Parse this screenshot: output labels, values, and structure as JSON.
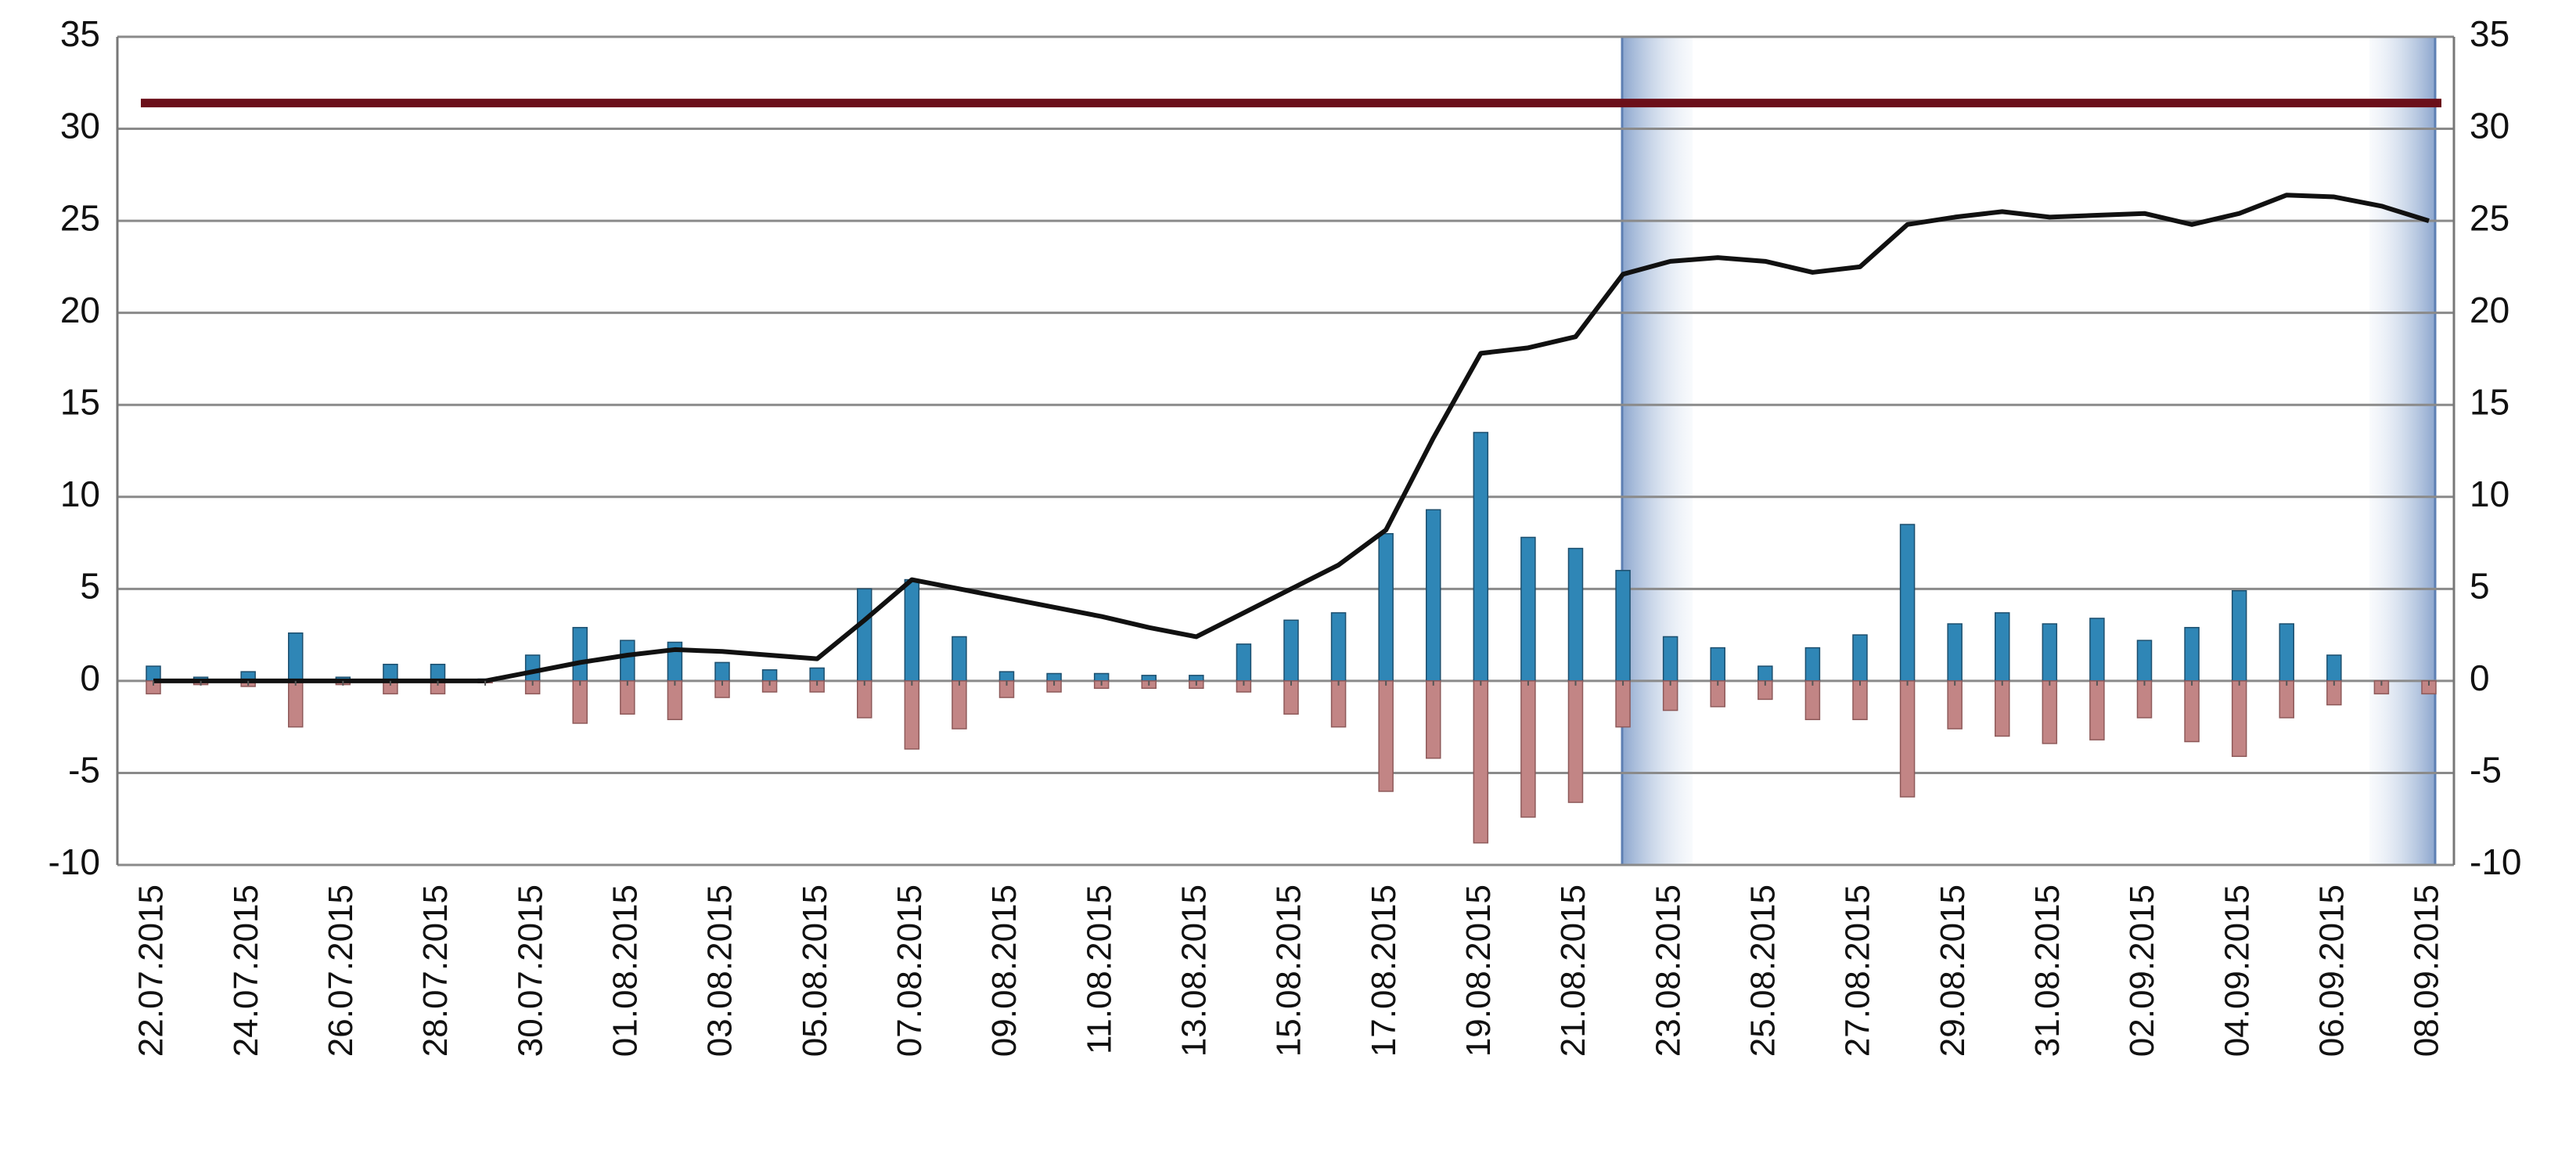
{
  "chart_data": {
    "type": "bar-line",
    "categories": [
      "22.07.2015",
      null,
      "24.07.2015",
      null,
      "26.07.2015",
      null,
      "28.07.2015",
      null,
      "30.07.2015",
      null,
      "01.08.2015",
      null,
      "03.08.2015",
      null,
      "05.08.2015",
      null,
      "07.08.2015",
      null,
      "09.08.2015",
      null,
      "11.08.2015",
      null,
      "13.08.2015",
      null,
      "15.08.2015",
      null,
      "17.08.2015",
      null,
      "19.08.2015",
      null,
      "21.08.2015",
      null,
      "23.08.2015",
      null,
      "25.08.2015",
      null,
      "27.08.2015",
      null,
      "29.08.2015",
      null,
      "31.08.2015",
      null,
      "02.09.2015",
      null,
      "04.09.2015",
      null,
      "06.09.2015",
      null,
      "08.09.2015"
    ],
    "series": [
      {
        "kind": "bar",
        "color": "#2f86b6",
        "values": [
          0.8,
          0.2,
          0.5,
          2.6,
          0.2,
          0.9,
          0.9,
          0.1,
          1.4,
          2.9,
          2.2,
          2.1,
          1.0,
          0.6,
          0.7,
          5.0,
          5.5,
          2.4,
          0.5,
          0.4,
          0.4,
          0.3,
          0.3,
          2.0,
          3.3,
          3.7,
          8.0,
          9.3,
          13.5,
          7.8,
          7.2,
          6.0,
          2.4,
          1.8,
          0.8,
          1.8,
          2.5,
          8.5,
          3.1,
          3.7,
          3.1,
          3.4,
          2.2,
          2.9,
          4.9,
          3.1,
          1.4,
          0,
          0
        ]
      },
      {
        "kind": "bar",
        "color": "#c28585",
        "values": [
          -0.7,
          -0.2,
          -0.3,
          -2.5,
          -0.2,
          -0.7,
          -0.7,
          -0.1,
          -0.7,
          -2.3,
          -1.8,
          -2.1,
          -0.9,
          -0.6,
          -0.6,
          -2.0,
          -3.7,
          -2.6,
          -0.9,
          -0.6,
          -0.4,
          -0.4,
          -0.4,
          -0.6,
          -1.8,
          -2.5,
          -6.0,
          -4.2,
          -8.8,
          -7.4,
          -6.6,
          -2.5,
          -1.6,
          -1.4,
          -1.0,
          -2.1,
          -2.1,
          -6.3,
          -2.6,
          -3.0,
          -3.4,
          -3.2,
          -2.0,
          -3.3,
          -4.1,
          -2.0,
          -1.3,
          -0.7,
          -0.7
        ]
      },
      {
        "kind": "line",
        "color": "#111111",
        "values": [
          0,
          0,
          0,
          0,
          0,
          0,
          0,
          0,
          0.5,
          1.0,
          1.4,
          1.7,
          1.6,
          1.4,
          1.2,
          3.3,
          5.5,
          5.0,
          4.5,
          4.0,
          3.5,
          2.9,
          2.4,
          3.7,
          5.0,
          6.3,
          8.2,
          13.2,
          17.8,
          18.1,
          18.7,
          22.1,
          22.8,
          23.0,
          22.8,
          22.2,
          22.5,
          24.8,
          25.2,
          25.5,
          25.2,
          25.3,
          25.4,
          24.8,
          25.4,
          26.4,
          26.3,
          25.8,
          25.0
        ]
      }
    ],
    "reference_line": {
      "value": 31.4,
      "color": "#6b0f1a"
    },
    "ylim": [
      -10,
      35
    ],
    "yticks": [
      -10,
      -5,
      0,
      5,
      10,
      15,
      20,
      25,
      30,
      35
    ],
    "y2lim": [
      -10,
      35
    ],
    "y2ticks": [
      -10,
      -5,
      0,
      5,
      10,
      15,
      20,
      25,
      30,
      35
    ],
    "grid": true
  }
}
